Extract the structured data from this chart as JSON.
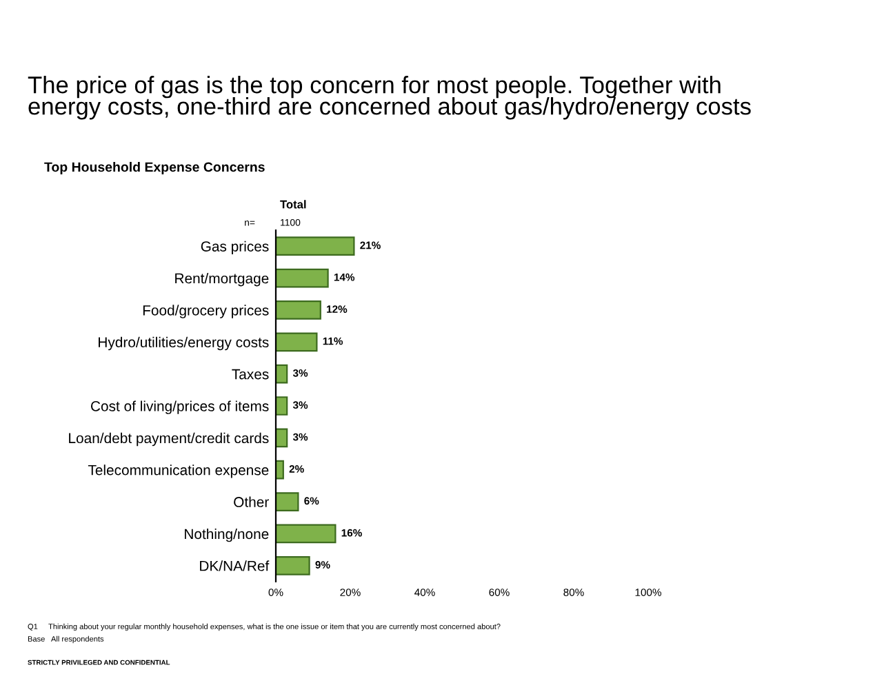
{
  "chart_data": {
    "type": "bar",
    "orientation": "horizontal",
    "title": "The price of gas is the top concern for most people. Together with\nenergy costs, one-third are concerned about gas/hydro/energy costs",
    "subtitle": "Top Household Expense Concerns",
    "categories": [
      "Gas prices",
      "Rent/mortgage",
      "Food/grocery prices",
      "Hydro/utilities/energy costs",
      "Taxes",
      "Cost of living/prices of items",
      "Loan/debt payment/credit cards",
      "Telecommunication expense",
      "Other",
      "Nothing/none",
      "DK/NA/Ref"
    ],
    "values": [
      21,
      14,
      12,
      11,
      3,
      3,
      3,
      2,
      6,
      16,
      9
    ],
    "value_labels": [
      "21%",
      "14%",
      "12%",
      "11%",
      "3%",
      "3%",
      "3%",
      "2%",
      "6%",
      "16%",
      "9%"
    ],
    "color": "#7fb24a",
    "xlim": [
      0,
      100
    ],
    "xticks": [
      {
        "value": 0,
        "label": "0%"
      },
      {
        "value": 20,
        "label": "20%"
      },
      {
        "value": 40,
        "label": "40%"
      },
      {
        "value": 60,
        "label": "60%"
      },
      {
        "value": 80,
        "label": "80%"
      },
      {
        "value": 100,
        "label": "100%"
      }
    ],
    "annotations": [
      "Total",
      "n=",
      "1100",
      "Q1     Thinking about your regular monthly household expenses, what is the one issue or item that you are currently most concerned about?",
      "Base   All respondents",
      "STRICTLY PRIVILEGED AND CONFIDENTIAL"
    ],
    "grid": false
  }
}
